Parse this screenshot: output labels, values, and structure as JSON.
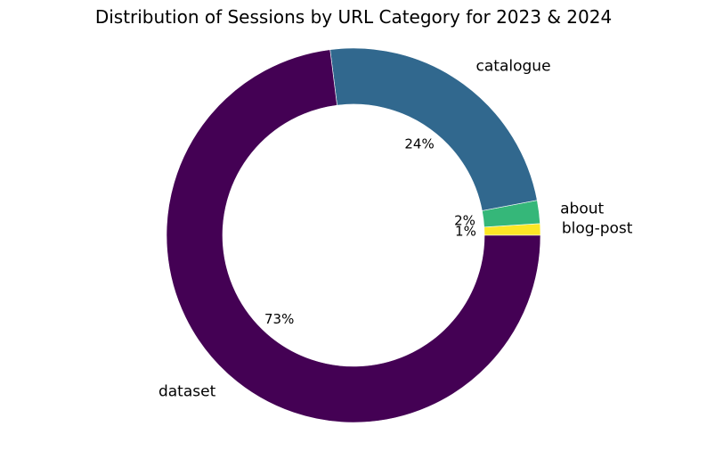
{
  "chart_data": {
    "type": "pie",
    "title": "Distribution of Sessions by URL Category for 2023 & 2024",
    "donut": true,
    "start": "right",
    "direction": "counterclockwise",
    "slices": [
      {
        "label": "blog-post",
        "value": 1,
        "pct_label": "1%",
        "color": "#fde725"
      },
      {
        "label": "about",
        "value": 2,
        "pct_label": "2%",
        "color": "#35b779"
      },
      {
        "label": "catalogue",
        "value": 24,
        "pct_label": "24%",
        "color": "#31688e"
      },
      {
        "label": "dataset",
        "value": 73,
        "pct_label": "73%",
        "color": "#440154"
      }
    ]
  }
}
